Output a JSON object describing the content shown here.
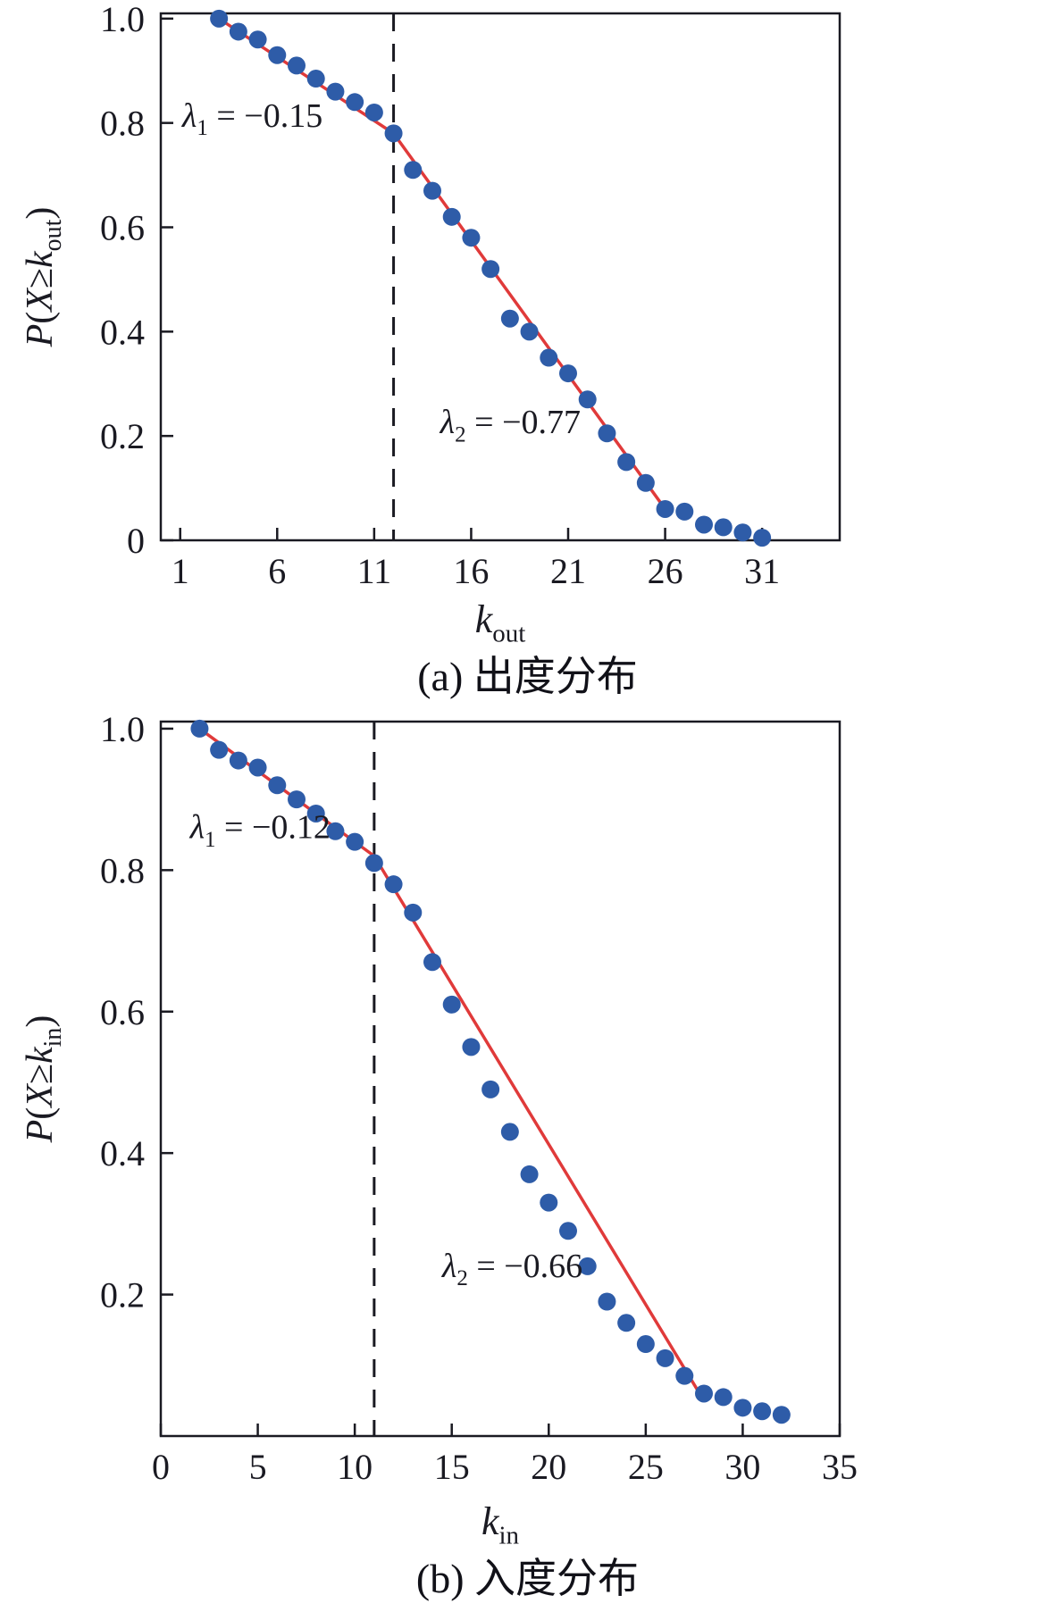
{
  "chart_data": [
    {
      "type": "scatter",
      "title": "",
      "caption": "(a) 出度分布",
      "xlabel": {
        "text": "k_out",
        "segments": [
          {
            "t": "k",
            "i": true
          },
          {
            "t": "out",
            "s": true
          }
        ]
      },
      "ylabel": {
        "text": "P(X ≥ k_out)",
        "segments": [
          {
            "t": "P",
            "i": true
          },
          {
            "t": "("
          },
          {
            "t": "X",
            "i": true
          },
          {
            "t": "≥"
          },
          {
            "t": "k",
            "i": true
          },
          {
            "t": "out",
            "s": true
          },
          {
            "t": ")"
          }
        ]
      },
      "xlim": [
        0,
        35
      ],
      "ylim": [
        0,
        1.01
      ],
      "grid": false,
      "legend": null,
      "xticks": [
        1,
        6,
        11,
        16,
        21,
        26,
        31
      ],
      "xtick_labels": [
        "1",
        "6",
        "11",
        "16",
        "21",
        "26",
        "31"
      ],
      "yticks": [
        0,
        0.2,
        0.4,
        0.6,
        0.8,
        1.0
      ],
      "ytick_labels": [
        "0",
        "0.2",
        "0.4",
        "0.6",
        "0.8",
        "1.0"
      ],
      "points": {
        "x": [
          3,
          4,
          5,
          6,
          7,
          8,
          9,
          10,
          11,
          12,
          13,
          14,
          15,
          16,
          17,
          18,
          19,
          20,
          21,
          22,
          23,
          24,
          25,
          26,
          27,
          28,
          29,
          30,
          31
        ],
        "y": [
          1.0,
          0.975,
          0.96,
          0.93,
          0.91,
          0.885,
          0.86,
          0.84,
          0.82,
          0.78,
          0.71,
          0.67,
          0.62,
          0.58,
          0.52,
          0.425,
          0.4,
          0.35,
          0.32,
          0.27,
          0.205,
          0.15,
          0.11,
          0.06,
          0.055,
          0.03,
          0.025,
          0.015,
          0.005
        ]
      },
      "fit_lines": [
        [
          [
            3,
            1.0
          ],
          [
            12,
            0.78
          ]
        ],
        [
          [
            12,
            0.78
          ],
          [
            26,
            0.06
          ]
        ]
      ],
      "dashed_x": 12,
      "annotations": [
        {
          "name": "lambda1-annotation",
          "text": "λ1 = −0.15",
          "x": 1.1,
          "y": 0.793,
          "segments": [
            {
              "t": "λ",
              "i": true
            },
            {
              "t": "1",
              "s": true
            },
            {
              "t": " = −0.15"
            }
          ]
        },
        {
          "name": "lambda2-annotation",
          "text": "λ2 = −0.77",
          "x": 14.4,
          "y": 0.205,
          "segments": [
            {
              "t": "λ",
              "i": true
            },
            {
              "t": "2",
              "s": true
            },
            {
              "t": " = −0.77"
            }
          ]
        }
      ],
      "colors": {
        "points": "#2e5ca8",
        "fit_line": "#e03a3a",
        "axis": "#1a1a22"
      }
    },
    {
      "type": "scatter",
      "title": "",
      "caption": "(b) 入度分布",
      "xlabel": {
        "text": "k_in",
        "segments": [
          {
            "t": "k",
            "i": true
          },
          {
            "t": "in",
            "s": true
          }
        ]
      },
      "ylabel": {
        "text": "P(X ≥ k_in)",
        "segments": [
          {
            "t": "P",
            "i": true
          },
          {
            "t": "("
          },
          {
            "t": "X",
            "i": true
          },
          {
            "t": "≥"
          },
          {
            "t": "k",
            "i": true
          },
          {
            "t": "in",
            "s": true
          },
          {
            "t": ")"
          }
        ]
      },
      "xlim": [
        0,
        35
      ],
      "ylim": [
        0,
        1.01
      ],
      "grid": false,
      "legend": null,
      "xticks": [
        0,
        5,
        10,
        15,
        20,
        25,
        30,
        35
      ],
      "xtick_labels": [
        "0",
        "5",
        "10",
        "15",
        "20",
        "25",
        "30",
        "35"
      ],
      "yticks": [
        0.2,
        0.4,
        0.6,
        0.8,
        1.0
      ],
      "ytick_labels": [
        "0.2",
        "0.4",
        "0.6",
        "0.8",
        "1.0"
      ],
      "points": {
        "x": [
          2,
          3,
          4,
          5,
          6,
          7,
          8,
          9,
          10,
          11,
          12,
          13,
          14,
          15,
          16,
          17,
          18,
          19,
          20,
          21,
          22,
          23,
          24,
          25,
          26,
          27,
          28,
          29,
          30,
          31,
          32
        ],
        "y": [
          1.0,
          0.97,
          0.955,
          0.945,
          0.92,
          0.9,
          0.88,
          0.855,
          0.84,
          0.81,
          0.78,
          0.74,
          0.67,
          0.61,
          0.55,
          0.49,
          0.43,
          0.37,
          0.33,
          0.29,
          0.24,
          0.19,
          0.16,
          0.13,
          0.11,
          0.085,
          0.06,
          0.055,
          0.04,
          0.035,
          0.03
        ]
      },
      "fit_lines": [
        [
          [
            2,
            1.0
          ],
          [
            11,
            0.82
          ]
        ],
        [
          [
            11,
            0.82
          ],
          [
            28,
            0.05
          ]
        ]
      ],
      "dashed_x": 11,
      "annotations": [
        {
          "name": "lambda1-annotation",
          "text": "λ1 = −0.12",
          "x": 1.5,
          "y": 0.845,
          "segments": [
            {
              "t": "λ",
              "i": true
            },
            {
              "t": "1",
              "s": true
            },
            {
              "t": " = −0.12"
            }
          ]
        },
        {
          "name": "lambda2-annotation",
          "text": "λ2 = −0.66",
          "x": 14.5,
          "y": 0.225,
          "segments": [
            {
              "t": "λ",
              "i": true
            },
            {
              "t": "2",
              "s": true
            },
            {
              "t": " = −0.66"
            }
          ]
        }
      ],
      "colors": {
        "points": "#2e5ca8",
        "fit_line": "#e03a3a",
        "axis": "#1a1a22"
      }
    }
  ]
}
